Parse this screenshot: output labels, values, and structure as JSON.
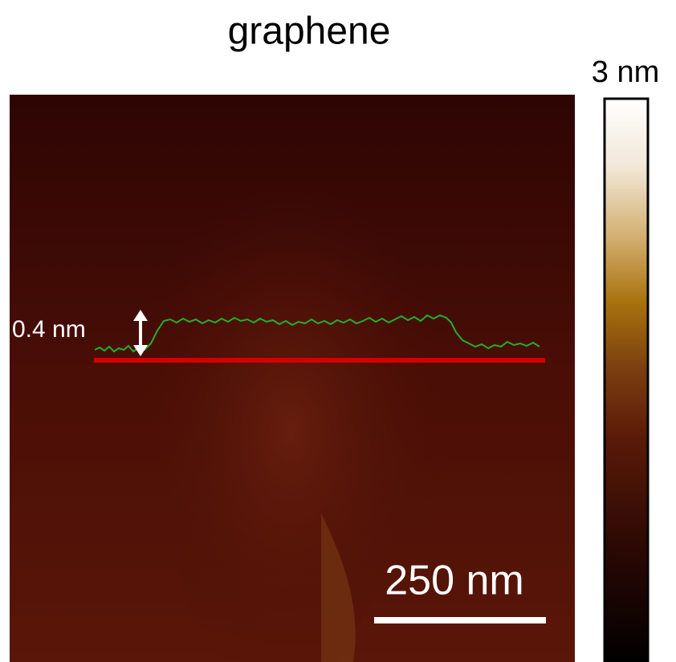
{
  "title": "graphene",
  "colorbar": {
    "max_label": "3 nm"
  },
  "annotation": "0.4 nm",
  "scale_bar": "250 nm"
}
